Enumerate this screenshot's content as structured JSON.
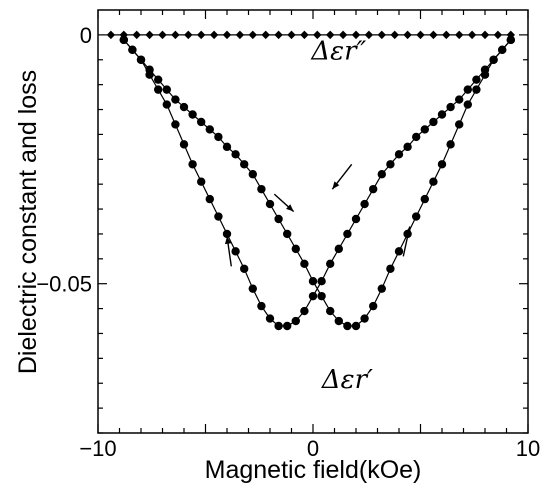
{
  "chart_data": {
    "type": "scatter",
    "title": "",
    "xlabel": "Magnetic field(kOe)",
    "ylabel": "Dielectric constant and loss",
    "xlim": [
      -10,
      10
    ],
    "ylim": [
      -0.08,
      0.005
    ],
    "x_tick_labels": [
      {
        "value": -10,
        "label": "−10"
      },
      {
        "value": 0,
        "label": "0"
      },
      {
        "value": 10,
        "label": "10"
      }
    ],
    "y_tick_labels": [
      {
        "value": 0,
        "label": "0"
      },
      {
        "value": -0.05,
        "label": "−0.05"
      }
    ],
    "grid": false,
    "series": [
      {
        "label": "Δεr″",
        "marker": "diamond",
        "x": [
          -9.4,
          -8.8,
          -8.2,
          -7.6,
          -7.0,
          -6.4,
          -5.8,
          -5.2,
          -4.6,
          -4.0,
          -3.4,
          -2.8,
          -2.2,
          -1.6,
          -1.0,
          -0.4,
          0.2,
          0.8,
          1.4,
          2.0,
          2.6,
          3.2,
          3.8,
          4.4,
          5.0,
          5.6,
          6.2,
          6.8,
          7.4,
          8.0,
          8.6,
          9.2
        ],
        "y": [
          0,
          0,
          0,
          0,
          0,
          0,
          0,
          0,
          0,
          0,
          0,
          0,
          0,
          0,
          0,
          0,
          0,
          0,
          0,
          0,
          0,
          0,
          0,
          0,
          0,
          0,
          0,
          0,
          0,
          0,
          0,
          0
        ]
      },
      {
        "label": "Δεr′",
        "sweep": "decreasing field",
        "marker": "circle",
        "x": [
          9.2,
          8.8,
          8.4,
          8.0,
          7.6,
          7.2,
          6.8,
          6.4,
          6.0,
          5.6,
          5.2,
          4.8,
          4.4,
          4.0,
          3.6,
          3.2,
          2.8,
          2.4,
          2.0,
          1.6,
          1.2,
          0.8,
          0.4,
          0.0,
          -0.4,
          -0.8,
          -1.2,
          -1.6,
          -2.0,
          -2.4,
          -2.8,
          -3.2,
          -3.6,
          -4.0,
          -4.4,
          -4.8,
          -5.2,
          -5.6,
          -6.0,
          -6.4,
          -6.8,
          -7.2,
          -7.6,
          -8.0,
          -8.4,
          -8.8
        ],
        "y": [
          -0.001,
          -0.003,
          -0.005,
          -0.007,
          -0.009,
          -0.011,
          -0.013,
          -0.0145,
          -0.016,
          -0.0175,
          -0.019,
          -0.0205,
          -0.0225,
          -0.024,
          -0.026,
          -0.028,
          -0.031,
          -0.034,
          -0.037,
          -0.04,
          -0.043,
          -0.046,
          -0.0495,
          -0.0525,
          -0.0555,
          -0.0575,
          -0.0585,
          -0.0585,
          -0.057,
          -0.0545,
          -0.051,
          -0.047,
          -0.0435,
          -0.04,
          -0.0365,
          -0.033,
          -0.0295,
          -0.026,
          -0.022,
          -0.018,
          -0.014,
          -0.011,
          -0.008,
          -0.005,
          -0.003,
          -0.001
        ]
      },
      {
        "label": "Δεr′",
        "sweep": "increasing field",
        "marker": "circle",
        "x": [
          -8.8,
          -8.4,
          -8.0,
          -7.6,
          -7.2,
          -6.8,
          -6.4,
          -6.0,
          -5.6,
          -5.2,
          -4.8,
          -4.4,
          -4.0,
          -3.6,
          -3.2,
          -2.8,
          -2.4,
          -2.0,
          -1.6,
          -1.2,
          -0.8,
          -0.4,
          0.0,
          0.4,
          0.8,
          1.2,
          1.6,
          2.0,
          2.4,
          2.8,
          3.2,
          3.6,
          4.0,
          4.4,
          4.8,
          5.2,
          5.6,
          6.0,
          6.4,
          6.8,
          7.2,
          7.6,
          8.0,
          8.4,
          8.8,
          9.2
        ],
        "y": [
          -0.001,
          -0.003,
          -0.005,
          -0.007,
          -0.009,
          -0.011,
          -0.013,
          -0.0145,
          -0.016,
          -0.0175,
          -0.019,
          -0.0205,
          -0.0225,
          -0.024,
          -0.026,
          -0.028,
          -0.031,
          -0.034,
          -0.037,
          -0.04,
          -0.043,
          -0.046,
          -0.0495,
          -0.0525,
          -0.0555,
          -0.0575,
          -0.0585,
          -0.0585,
          -0.057,
          -0.0545,
          -0.051,
          -0.047,
          -0.0435,
          -0.04,
          -0.0365,
          -0.033,
          -0.0295,
          -0.026,
          -0.022,
          -0.018,
          -0.014,
          -0.011,
          -0.008,
          -0.005,
          -0.003,
          -0.001
        ]
      }
    ],
    "annotations": [
      {
        "text": "Δεr″",
        "x": 1.2,
        "y": -0.0005
      },
      {
        "text": "Δεr′",
        "x": 1.6,
        "y": -0.0665
      }
    ],
    "arrows": [
      {
        "x1": -1.8,
        "y1": -0.032,
        "x2": -0.9,
        "y2": -0.0355
      },
      {
        "x1": 1.8,
        "y1": -0.026,
        "x2": 0.9,
        "y2": -0.031
      },
      {
        "x1": -3.8,
        "y1": -0.0465,
        "x2": -4.0,
        "y2": -0.0405
      },
      {
        "x1": 4.2,
        "y1": -0.0445,
        "x2": 4.5,
        "y2": -0.0385
      }
    ]
  }
}
